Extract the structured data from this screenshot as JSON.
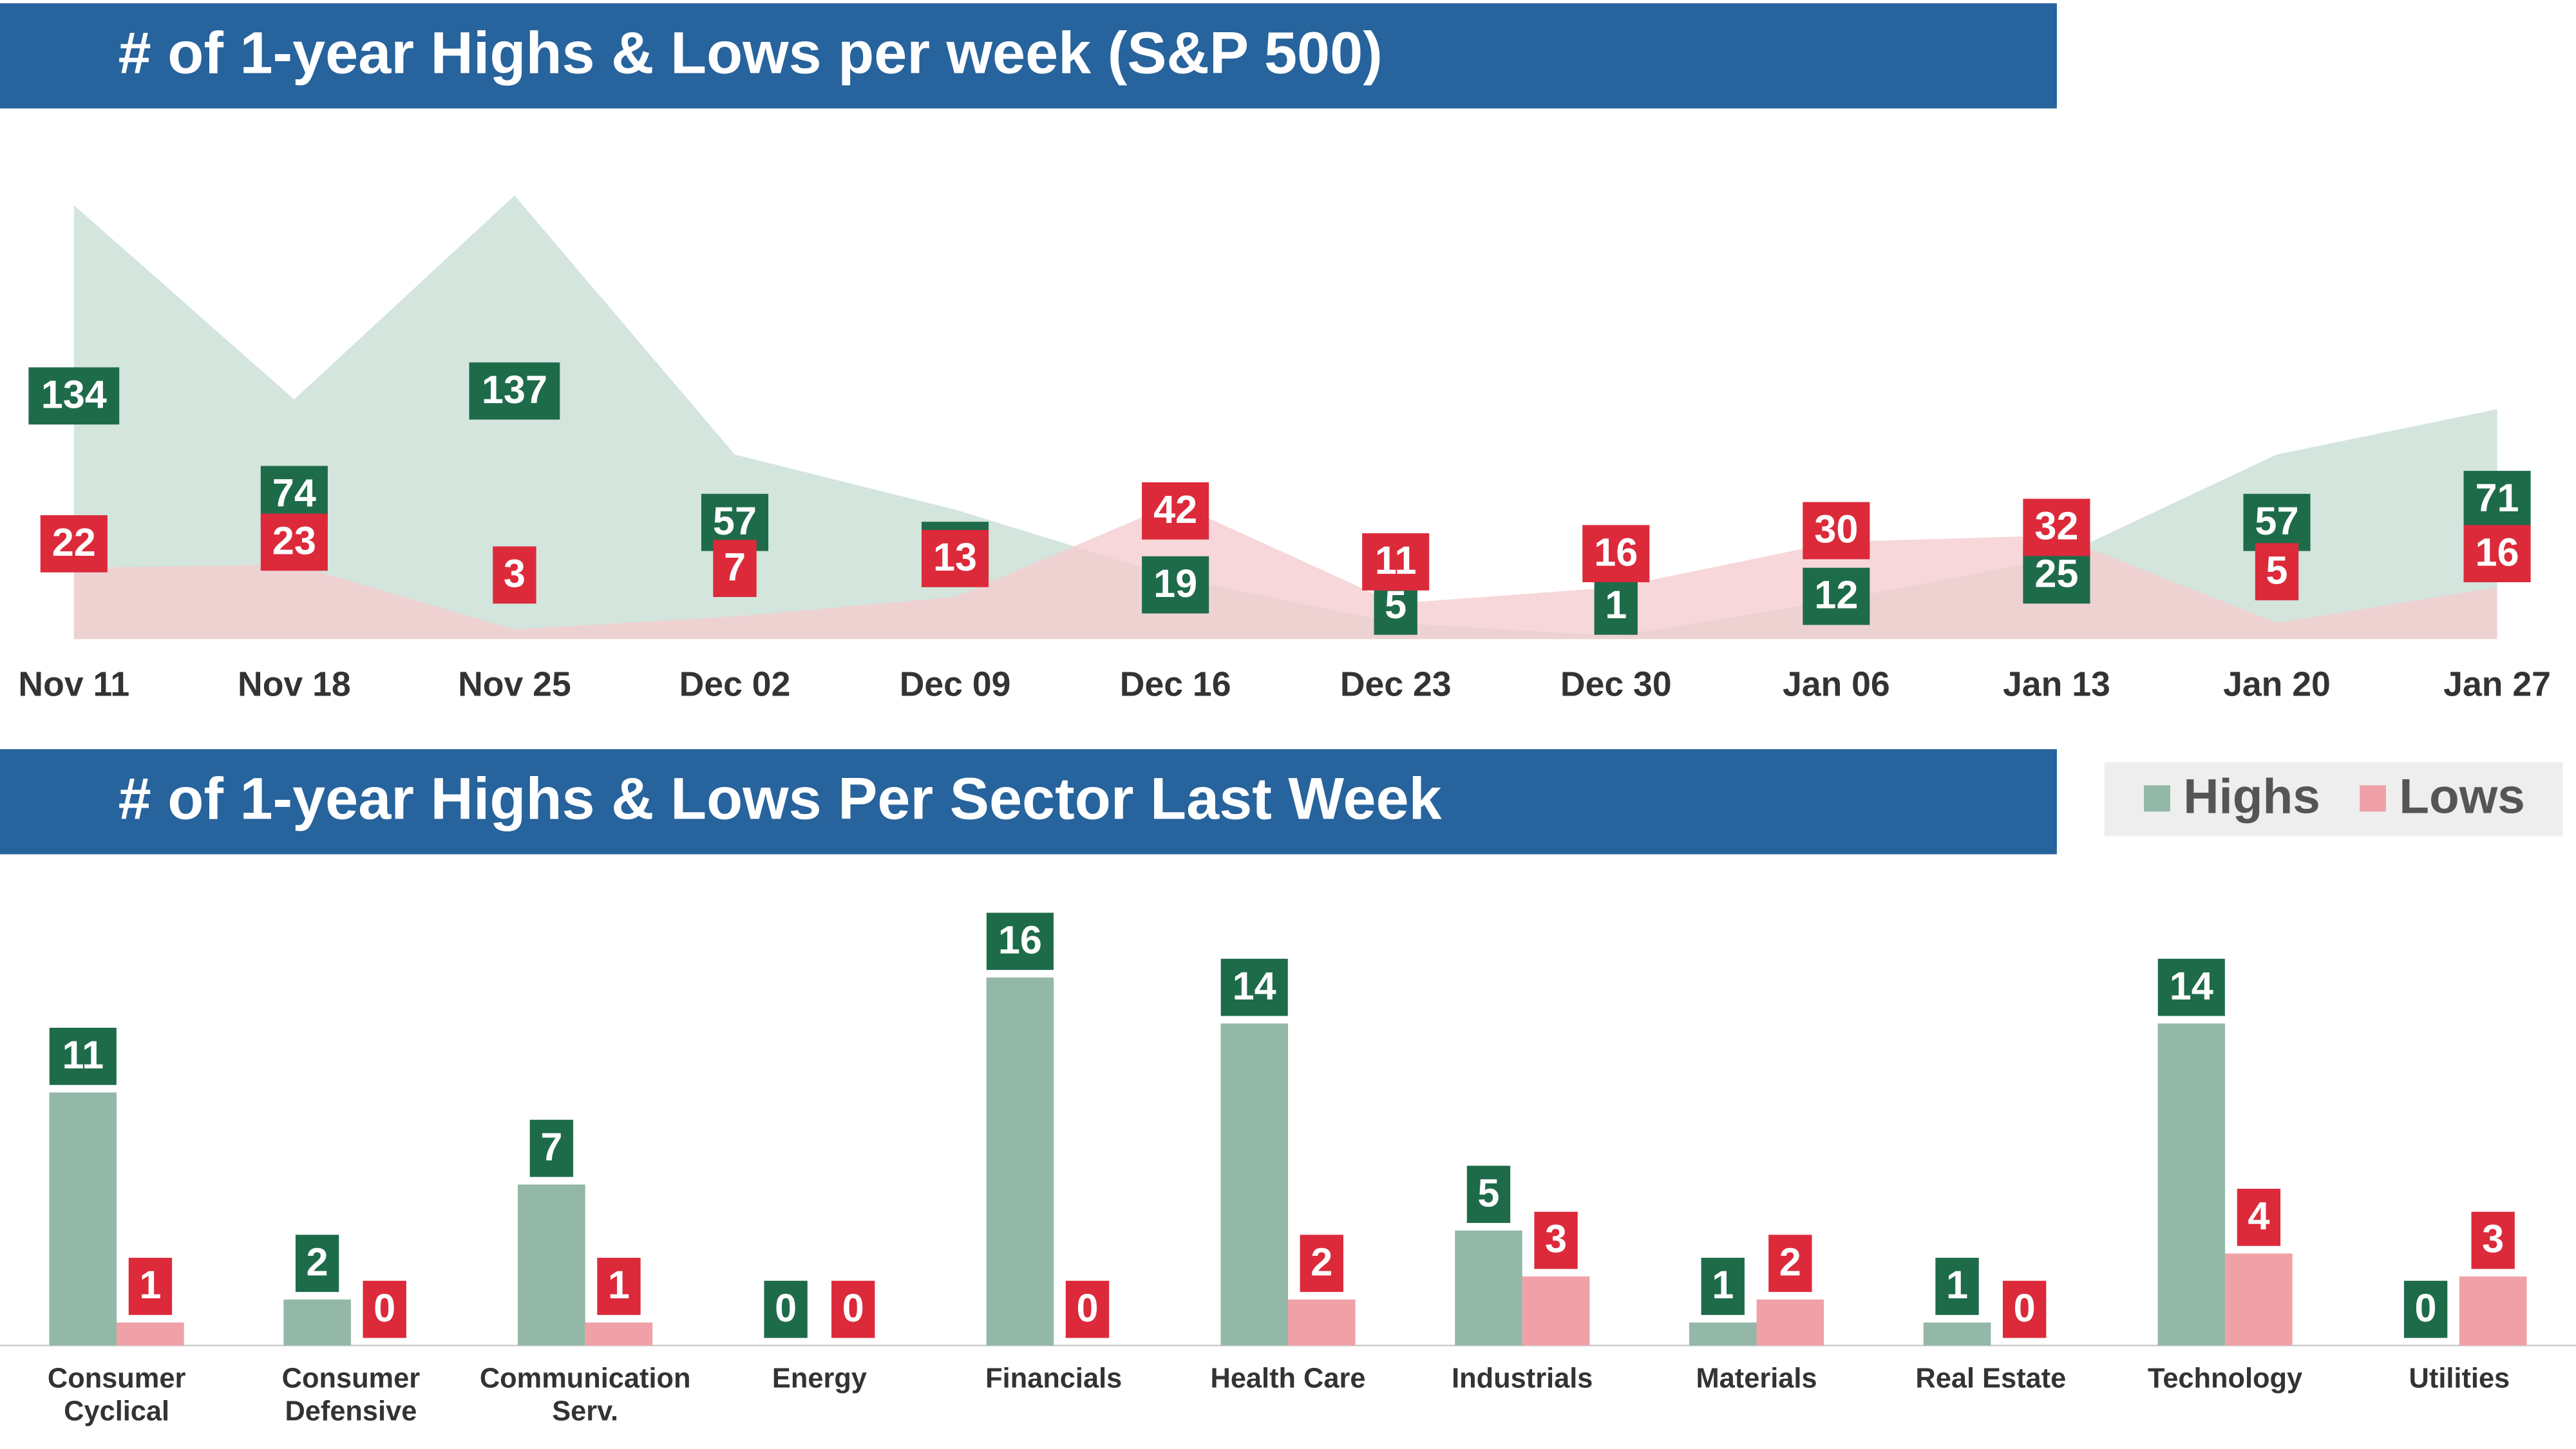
{
  "chart_data": [
    {
      "type": "area",
      "title": "# of 1-year Highs & Lows per week (S&P 500)",
      "categories": [
        "Nov 11",
        "Nov 18",
        "Nov 25",
        "Dec 02",
        "Dec 09",
        "Dec 16",
        "Dec 23",
        "Dec 30",
        "Jan 06",
        "Jan 13",
        "Jan 20",
        "Jan 27"
      ],
      "series": [
        {
          "name": "Highs",
          "color": "#d3e5dd",
          "label_color": "#1e6b4a",
          "values": [
            134,
            74,
            137,
            57,
            40,
            19,
            5,
            1,
            12,
            25,
            57,
            71
          ]
        },
        {
          "name": "Lows",
          "color": "#f5cdd0",
          "label_color": "#dc2a3a",
          "values": [
            22,
            23,
            3,
            7,
            13,
            42,
            11,
            16,
            30,
            32,
            5,
            16
          ]
        }
      ]
    },
    {
      "type": "bar",
      "title": "# of 1-year Highs & Lows Per Sector Last Week",
      "legend": "top-right",
      "categories": [
        [
          "Consumer",
          "Cyclical"
        ],
        [
          "Consumer",
          "Defensive"
        ],
        [
          "Communication",
          "Serv."
        ],
        [
          "Energy"
        ],
        [
          "Financials"
        ],
        [
          "Health Care"
        ],
        [
          "Industrials"
        ],
        [
          "Materials"
        ],
        [
          "Real Estate"
        ],
        [
          "Technology"
        ],
        [
          "Utilities"
        ]
      ],
      "series": [
        {
          "name": "Highs",
          "color": "#93b8a8",
          "label_color": "#1e6b4a",
          "values": [
            11,
            2,
            7,
            0,
            16,
            14,
            5,
            1,
            1,
            14,
            0
          ]
        },
        {
          "name": "Lows",
          "color": "#f0a1a8",
          "label_color": "#dc2a3a",
          "values": [
            1,
            0,
            1,
            0,
            0,
            2,
            3,
            2,
            0,
            4,
            3
          ]
        }
      ]
    }
  ]
}
